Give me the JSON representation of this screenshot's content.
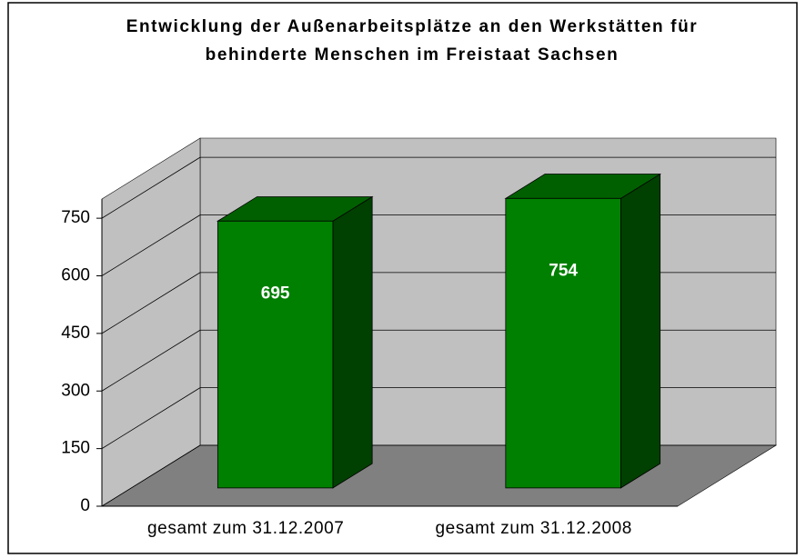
{
  "chart_data": {
    "type": "bar3d",
    "title": "Entwicklung der Außenarbeitsplätze an den Werkstätten für behinderte Menschen im Freistaat Sachsen",
    "categories": [
      "gesamt zum 31.12.2007",
      "gesamt zum 31.12.2008"
    ],
    "values": [
      695,
      754
    ],
    "color": "#008000",
    "ylim": [
      0,
      800
    ],
    "yticks": [
      0,
      150,
      300,
      450,
      600,
      750
    ],
    "grid": true
  }
}
